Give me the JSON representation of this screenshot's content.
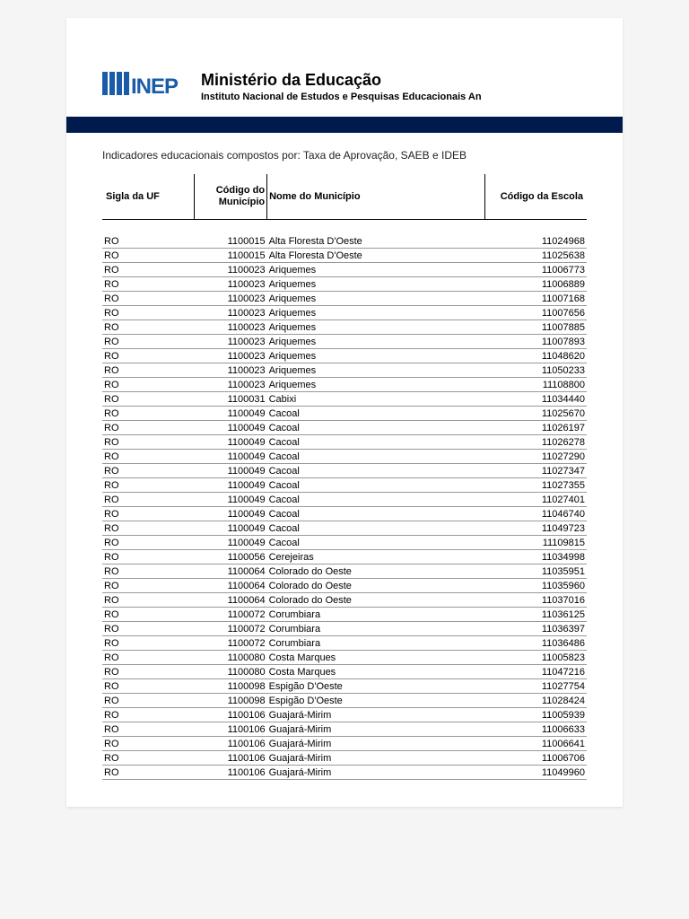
{
  "header": {
    "title": "Ministério da Educação",
    "subtitle": "Instituto Nacional de Estudos e Pesquisas Educacionais An"
  },
  "description": "Indicadores educacionais compostos por: Taxa de Aprovação, SAEB e IDEB",
  "logo": {
    "bg": "#ffffff",
    "bars": "#1a5ca8",
    "text": "#1a5ca8"
  },
  "columns": [
    "Sigla da UF",
    "Código do Município",
    "Nome do Município",
    "Código da Escola"
  ],
  "rows": [
    [
      "RO",
      "1100015",
      "Alta Floresta D'Oeste",
      "11024968"
    ],
    [
      "RO",
      "1100015",
      "Alta Floresta D'Oeste",
      "11025638"
    ],
    [
      "RO",
      "1100023",
      "Ariquemes",
      "11006773"
    ],
    [
      "RO",
      "1100023",
      "Ariquemes",
      "11006889"
    ],
    [
      "RO",
      "1100023",
      "Ariquemes",
      "11007168"
    ],
    [
      "RO",
      "1100023",
      "Ariquemes",
      "11007656"
    ],
    [
      "RO",
      "1100023",
      "Ariquemes",
      "11007885"
    ],
    [
      "RO",
      "1100023",
      "Ariquemes",
      "11007893"
    ],
    [
      "RO",
      "1100023",
      "Ariquemes",
      "11048620"
    ],
    [
      "RO",
      "1100023",
      "Ariquemes",
      "11050233"
    ],
    [
      "RO",
      "1100023",
      "Ariquemes",
      "11108800"
    ],
    [
      "RO",
      "1100031",
      "Cabixi",
      "11034440"
    ],
    [
      "RO",
      "1100049",
      "Cacoal",
      "11025670"
    ],
    [
      "RO",
      "1100049",
      "Cacoal",
      "11026197"
    ],
    [
      "RO",
      "1100049",
      "Cacoal",
      "11026278"
    ],
    [
      "RO",
      "1100049",
      "Cacoal",
      "11027290"
    ],
    [
      "RO",
      "1100049",
      "Cacoal",
      "11027347"
    ],
    [
      "RO",
      "1100049",
      "Cacoal",
      "11027355"
    ],
    [
      "RO",
      "1100049",
      "Cacoal",
      "11027401"
    ],
    [
      "RO",
      "1100049",
      "Cacoal",
      "11046740"
    ],
    [
      "RO",
      "1100049",
      "Cacoal",
      "11049723"
    ],
    [
      "RO",
      "1100049",
      "Cacoal",
      "11109815"
    ],
    [
      "RO",
      "1100056",
      "Cerejeiras",
      "11034998"
    ],
    [
      "RO",
      "1100064",
      "Colorado do Oeste",
      "11035951"
    ],
    [
      "RO",
      "1100064",
      "Colorado do Oeste",
      "11035960"
    ],
    [
      "RO",
      "1100064",
      "Colorado do Oeste",
      "11037016"
    ],
    [
      "RO",
      "1100072",
      "Corumbiara",
      "11036125"
    ],
    [
      "RO",
      "1100072",
      "Corumbiara",
      "11036397"
    ],
    [
      "RO",
      "1100072",
      "Corumbiara",
      "11036486"
    ],
    [
      "RO",
      "1100080",
      "Costa Marques",
      "11005823"
    ],
    [
      "RO",
      "1100080",
      "Costa Marques",
      "11047216"
    ],
    [
      "RO",
      "1100098",
      "Espigão D'Oeste",
      "11027754"
    ],
    [
      "RO",
      "1100098",
      "Espigão D'Oeste",
      "11028424"
    ],
    [
      "RO",
      "1100106",
      "Guajará-Mirim",
      "11005939"
    ],
    [
      "RO",
      "1100106",
      "Guajará-Mirim",
      "11006633"
    ],
    [
      "RO",
      "1100106",
      "Guajará-Mirim",
      "11006641"
    ],
    [
      "RO",
      "1100106",
      "Guajará-Mirim",
      "11006706"
    ],
    [
      "RO",
      "1100106",
      "Guajará-Mirim",
      "11049960"
    ]
  ],
  "styling": {
    "page_bg": "#ffffff",
    "body_bg": "#f5f5f5",
    "bar_color": "#001a4d",
    "row_border": "#999999",
    "header_border": "#000000",
    "font_family": "Arial",
    "header_fontsize": 11,
    "cell_fontsize": 11
  }
}
